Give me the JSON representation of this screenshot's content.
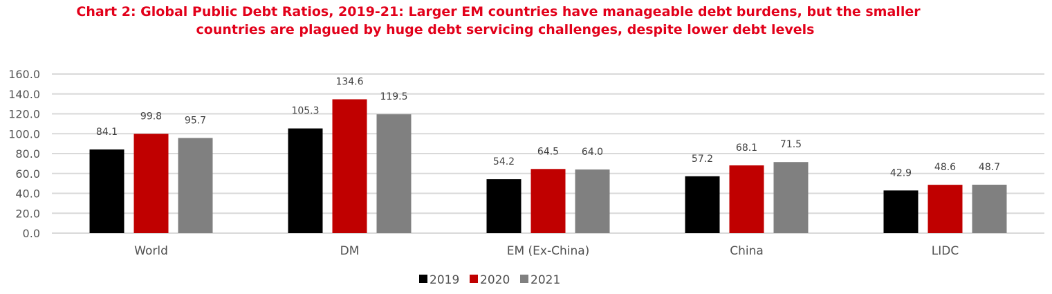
{
  "chart_data": {
    "type": "bar",
    "title": "Chart 2: Global Public Debt Ratios, 2019-21: Larger EM countries have manageable debt burdens, but the smaller countries are plagued by huge debt servicing challenges, despite lower debt levels",
    "title_lines": [
      "Chart 2: Global Public Debt Ratios, 2019-21: Larger EM countries have manageable debt burdens, but the smaller",
      "countries are plagued by huge debt servicing challenges, despite lower debt levels"
    ],
    "xlabel": "",
    "ylabel": "",
    "categories": [
      "World",
      "DM",
      "EM (Ex-China)",
      "China",
      "LIDC"
    ],
    "series": [
      {
        "name": "2019",
        "color": "#000000",
        "values": [
          84.1,
          105.3,
          54.2,
          57.2,
          42.9
        ]
      },
      {
        "name": "2020",
        "color": "#c00000",
        "values": [
          99.8,
          134.6,
          64.5,
          68.1,
          48.6
        ]
      },
      {
        "name": "2021",
        "color": "#808080",
        "values": [
          95.7,
          119.5,
          64.0,
          71.5,
          48.7
        ]
      }
    ],
    "ylim": [
      0,
      160
    ],
    "yticks": [
      "0.0",
      "20.0",
      "40.0",
      "60.0",
      "80.0",
      "100.0",
      "120.0",
      "140.0",
      "160.0"
    ],
    "ytick_values": [
      0,
      20,
      40,
      60,
      80,
      100,
      120,
      140,
      160
    ],
    "grid": true,
    "legend_position": "bottom",
    "data_labels": true,
    "title_color": "#e2001a",
    "gridline_color": "#d9d9d9"
  }
}
